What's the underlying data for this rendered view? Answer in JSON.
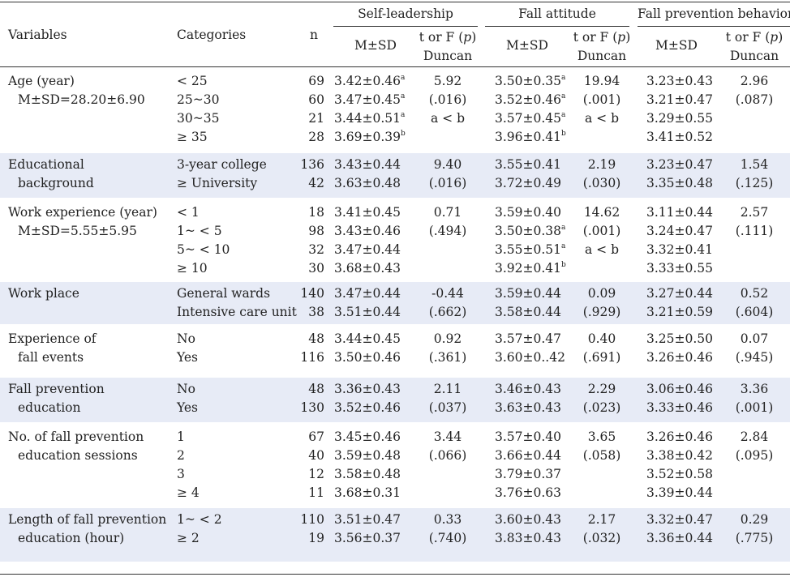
{
  "header": {
    "variables": "Variables",
    "categories": "Categories",
    "n": "n",
    "groups": [
      "Self-leadership",
      "Fall attitude",
      "Fall prevention behavior"
    ],
    "msd": "M±SD",
    "test_line1_prefix": "t or F (",
    "test_p": "p",
    "test_line1_suffix": ")",
    "test_line2": "Duncan"
  },
  "rows": [
    {
      "variable": [
        "Age (year)",
        "M±SD=28.20±6.90"
      ],
      "categories": [
        "< 25",
        "25~30",
        "30~35",
        "≥ 35"
      ],
      "n": [
        "69",
        "60",
        "21",
        "28"
      ],
      "sl_msd": [
        [
          "3.42±0.46",
          "a"
        ],
        [
          "3.47±0.45",
          "a"
        ],
        [
          "3.44±0.51",
          "a"
        ],
        [
          "3.69±0.39",
          "b"
        ]
      ],
      "sl_test": [
        "5.92",
        "(.016)",
        "a < b"
      ],
      "fa_msd": [
        [
          "3.50±0.35",
          "a"
        ],
        [
          "3.52±0.46",
          "a"
        ],
        [
          "3.57±0.45",
          "a"
        ],
        [
          "3.96±0.41",
          "b"
        ]
      ],
      "fa_test": [
        "19.94",
        "(.001)",
        "a < b"
      ],
      "fpb_msd": [
        [
          "3.23±0.43",
          ""
        ],
        [
          "3.21±0.47",
          ""
        ],
        [
          "3.29±0.55",
          ""
        ],
        [
          "3.41±0.52",
          ""
        ]
      ],
      "fpb_test": [
        "2.96",
        "(.087)"
      ],
      "shaded": false
    },
    {
      "variable": [
        "Educational",
        "background"
      ],
      "categories": [
        "3-year college",
        "≥ University"
      ],
      "n": [
        "136",
        "42"
      ],
      "sl_msd": [
        [
          "3.43±0.44",
          ""
        ],
        [
          "3.63±0.48",
          ""
        ]
      ],
      "sl_test": [
        "9.40",
        "(.016)"
      ],
      "fa_msd": [
        [
          "3.55±0.41",
          ""
        ],
        [
          "3.72±0.49",
          ""
        ]
      ],
      "fa_test": [
        "2.19",
        "(.030)"
      ],
      "fpb_msd": [
        [
          "3.23±0.47",
          ""
        ],
        [
          "3.35±0.48",
          ""
        ]
      ],
      "fpb_test": [
        "1.54",
        "(.125)"
      ],
      "shaded": true
    },
    {
      "variable": [
        "Work experience (year)",
        "M±SD=5.55±5.95"
      ],
      "categories": [
        "< 1",
        "1~ < 5",
        "5~ < 10",
        "≥ 10"
      ],
      "n": [
        "18",
        "98",
        "32",
        "30"
      ],
      "sl_msd": [
        [
          "3.41±0.45",
          ""
        ],
        [
          "3.43±0.46",
          ""
        ],
        [
          "3.47±0.44",
          ""
        ],
        [
          "3.68±0.43",
          ""
        ]
      ],
      "sl_test": [
        "0.71",
        "(.494)"
      ],
      "fa_msd": [
        [
          "3.59±0.40",
          ""
        ],
        [
          "3.50±0.38",
          "a"
        ],
        [
          "3.55±0.51",
          "a"
        ],
        [
          "3.92±0.41",
          "b"
        ]
      ],
      "fa_test": [
        "14.62",
        "(.001)",
        "a < b"
      ],
      "fpb_msd": [
        [
          "3.11±0.44",
          ""
        ],
        [
          "3.24±0.47",
          ""
        ],
        [
          "3.32±0.41",
          ""
        ],
        [
          "3.33±0.55",
          ""
        ]
      ],
      "fpb_test": [
        "2.57",
        "(.111)"
      ],
      "shaded": false
    },
    {
      "variable": [
        "Work place"
      ],
      "categories": [
        "General wards",
        "Intensive care unit"
      ],
      "n": [
        "140",
        "38"
      ],
      "sl_msd": [
        [
          "3.47±0.44",
          ""
        ],
        [
          "3.51±0.44",
          ""
        ]
      ],
      "sl_test": [
        "-0.44",
        "(.662)"
      ],
      "fa_msd": [
        [
          "3.59±0.44",
          ""
        ],
        [
          "3.58±0.44",
          ""
        ]
      ],
      "fa_test": [
        "0.09",
        "(.929)"
      ],
      "fpb_msd": [
        [
          "3.27±0.44",
          ""
        ],
        [
          "3.21±0.59",
          ""
        ]
      ],
      "fpb_test": [
        "0.52",
        "(.604)"
      ],
      "shaded": true
    },
    {
      "variable": [
        "Experience of",
        "fall events"
      ],
      "categories": [
        "No",
        "Yes"
      ],
      "n": [
        "48",
        "116"
      ],
      "sl_msd": [
        [
          "3.44±0.45",
          ""
        ],
        [
          "3.50±0.46",
          ""
        ]
      ],
      "sl_test": [
        "0.92",
        "(.361)"
      ],
      "fa_msd": [
        [
          "3.57±0.47",
          ""
        ],
        [
          "3.60±0..42",
          ""
        ]
      ],
      "fa_test": [
        "0.40",
        "(.691)"
      ],
      "fpb_msd": [
        [
          "3.25±0.50",
          ""
        ],
        [
          "3.26±0.46",
          ""
        ]
      ],
      "fpb_test": [
        "0.07",
        "(.945)"
      ],
      "shaded": false
    },
    {
      "variable": [
        "Fall prevention",
        "education"
      ],
      "categories": [
        "No",
        "Yes"
      ],
      "n": [
        "48",
        "130"
      ],
      "sl_msd": [
        [
          "3.36±0.43",
          ""
        ],
        [
          "3.52±0.46",
          ""
        ]
      ],
      "sl_test": [
        "2.11",
        "(.037)"
      ],
      "fa_msd": [
        [
          "3.46±0.43",
          ""
        ],
        [
          "3.63±0.43",
          ""
        ]
      ],
      "fa_test": [
        "2.29",
        "(.023)"
      ],
      "fpb_msd": [
        [
          "3.06±0.46",
          ""
        ],
        [
          "3.33±0.46",
          ""
        ]
      ],
      "fpb_test": [
        "3.36",
        "(.001)"
      ],
      "shaded": true
    },
    {
      "variable": [
        "No. of fall prevention",
        "education sessions"
      ],
      "categories": [
        "1",
        "2",
        "3",
        "≥ 4"
      ],
      "n": [
        "67",
        "40",
        "12",
        "11"
      ],
      "sl_msd": [
        [
          "3.45±0.46",
          ""
        ],
        [
          "3.59±0.48",
          ""
        ],
        [
          "3.58±0.48",
          ""
        ],
        [
          "3.68±0.31",
          ""
        ]
      ],
      "sl_test": [
        "3.44",
        "(.066)"
      ],
      "fa_msd": [
        [
          "3.57±0.40",
          ""
        ],
        [
          "3.66±0.44",
          ""
        ],
        [
          "3.79±0.37",
          ""
        ],
        [
          "3.76±0.63",
          ""
        ]
      ],
      "fa_test": [
        "3.65",
        "(.058)"
      ],
      "fpb_msd": [
        [
          "3.26±0.46",
          ""
        ],
        [
          "3.38±0.42",
          ""
        ],
        [
          "3.52±0.58",
          ""
        ],
        [
          "3.39±0.44",
          ""
        ]
      ],
      "fpb_test": [
        "2.84",
        "(.095)"
      ],
      "shaded": false
    },
    {
      "variable": [
        "Length of fall prevention",
        "education (hour)"
      ],
      "categories": [
        "1~ < 2",
        "≥ 2"
      ],
      "n": [
        "110",
        "19"
      ],
      "sl_msd": [
        [
          "3.51±0.47",
          ""
        ],
        [
          "3.56±0.37",
          ""
        ]
      ],
      "sl_test": [
        "0.33",
        "(.740)"
      ],
      "fa_msd": [
        [
          "3.60±0.43",
          ""
        ],
        [
          "3.83±0.43",
          ""
        ]
      ],
      "fa_test": [
        "2.17",
        "(.032)"
      ],
      "fpb_msd": [
        [
          "3.32±0.47",
          ""
        ],
        [
          "3.36±0.44",
          ""
        ]
      ],
      "fpb_test": [
        "0.29",
        "(.775)"
      ],
      "shaded": true
    }
  ]
}
